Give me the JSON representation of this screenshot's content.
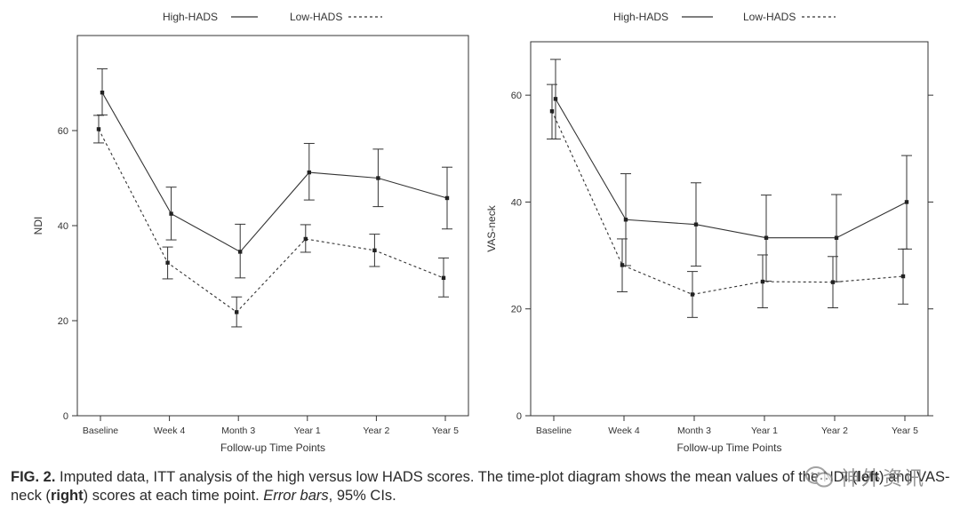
{
  "chart_data": [
    {
      "type": "line",
      "panel": "left",
      "categories": [
        "Baseline",
        "Week 4",
        "Month 3",
        "Year 1",
        "Year 2",
        "Year 5"
      ],
      "xlabel": "Follow-up Time Points",
      "ylabel": "NDI",
      "ylim": [
        0,
        80
      ],
      "yticks": [
        0,
        20,
        40,
        60
      ],
      "legend": {
        "placement": "top",
        "entries": [
          "High-HADS",
          "Low-HADS"
        ]
      },
      "series": [
        {
          "name": "High-HADS",
          "style": "solid",
          "values": [
            68,
            42.5,
            34.5,
            51.2,
            50,
            45.8
          ],
          "ci_low": [
            63.3,
            37,
            29,
            45.4,
            44,
            39.3
          ],
          "ci_high": [
            73,
            48.1,
            40.3,
            57.3,
            56.1,
            52.3
          ]
        },
        {
          "name": "Low-HADS",
          "style": "dashed",
          "values": [
            60.3,
            32.2,
            21.8,
            37.2,
            34.8,
            29
          ],
          "ci_low": [
            57.4,
            28.8,
            18.7,
            34.4,
            31.4,
            25
          ],
          "ci_high": [
            63.2,
            35.5,
            25,
            40.2,
            38.2,
            33.2
          ]
        }
      ]
    },
    {
      "type": "line",
      "panel": "right",
      "categories": [
        "Baseline",
        "Week 4",
        "Month 3",
        "Year 1",
        "Year 2",
        "Year 5"
      ],
      "xlabel": "Follow-up Time Points",
      "ylabel": "VAS-neck",
      "ylim": [
        0,
        70
      ],
      "yticks": [
        0,
        20,
        40,
        60
      ],
      "legend": {
        "placement": "top",
        "entries": [
          "High-HADS",
          "Low-HADS"
        ]
      },
      "series": [
        {
          "name": "High-HADS",
          "style": "solid",
          "values": [
            59.3,
            36.7,
            35.8,
            33.3,
            33.3,
            40
          ],
          "ci_low": [
            51.8,
            28.1,
            28,
            25.2,
            25.1,
            31.2
          ],
          "ci_high": [
            66.7,
            45.3,
            43.6,
            41.3,
            41.4,
            48.7
          ]
        },
        {
          "name": "Low-HADS",
          "style": "dashed",
          "values": [
            57,
            28.2,
            22.7,
            25.1,
            25,
            26.1
          ],
          "ci_low": [
            51.8,
            23.2,
            18.4,
            20.2,
            20.2,
            20.9
          ],
          "ci_high": [
            62,
            33.1,
            27,
            30.1,
            29.8,
            31.2
          ]
        }
      ]
    }
  ],
  "caption": {
    "fig_label": "FIG. 2.",
    "text_1": " Imputed data, ITT analysis of the high versus low HADS scores. The time-plot diagram shows the mean values of the NDI (",
    "left": "left",
    "text_2": ") and VAS-neck (",
    "right": "right",
    "text_3": ") scores at each time point. ",
    "error_bars": "Error bars",
    "text_4": ", 95% CIs."
  },
  "watermark": {
    "text": "神外资讯",
    "icon": "wechat-icon"
  }
}
